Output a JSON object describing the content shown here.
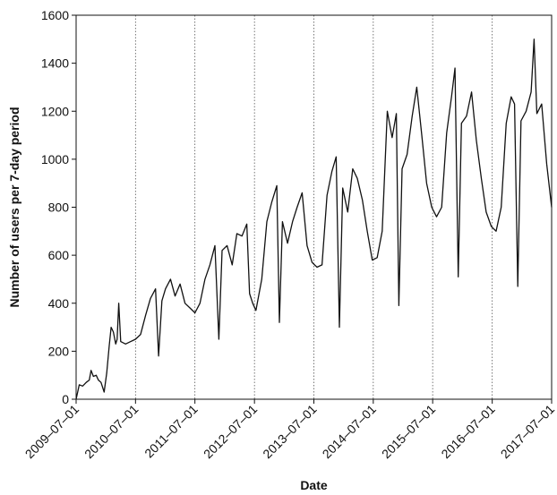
{
  "chart_data": {
    "type": "line",
    "title": "",
    "xlabel": "Date",
    "ylabel": "Number of users per 7-day period",
    "ylim": [
      0,
      1600
    ],
    "xlim": [
      "2009-07-01",
      "2017-07-01"
    ],
    "x_ticks": [
      "2009–07–01",
      "2010–07–01",
      "2011–07–01",
      "2012–07–01",
      "2013–07–01",
      "2014–07–01",
      "2015–07–01",
      "2016–07–01",
      "2017–07–01"
    ],
    "y_ticks": [
      0,
      200,
      400,
      600,
      800,
      1000,
      1200,
      1400,
      1600
    ],
    "grid": "vertical dotted lines at each x tick",
    "series": [
      {
        "color": "#111111",
        "points": [
          [
            "2009-07-01",
            0
          ],
          [
            "2009-07-20",
            60
          ],
          [
            "2009-08-10",
            55
          ],
          [
            "2009-09-01",
            70
          ],
          [
            "2009-09-20",
            80
          ],
          [
            "2009-10-01",
            120
          ],
          [
            "2009-10-15",
            95
          ],
          [
            "2009-11-01",
            100
          ],
          [
            "2009-11-15",
            80
          ],
          [
            "2009-12-01",
            70
          ],
          [
            "2009-12-20",
            30
          ],
          [
            "2010-01-05",
            110
          ],
          [
            "2010-01-20",
            220
          ],
          [
            "2010-02-01",
            300
          ],
          [
            "2010-02-15",
            280
          ],
          [
            "2010-03-01",
            230
          ],
          [
            "2010-03-10",
            250
          ],
          [
            "2010-03-20",
            400
          ],
          [
            "2010-04-01",
            240
          ],
          [
            "2010-05-01",
            230
          ],
          [
            "2010-06-01",
            240
          ],
          [
            "2010-07-01",
            250
          ],
          [
            "2010-08-01",
            270
          ],
          [
            "2010-09-01",
            350
          ],
          [
            "2010-10-01",
            420
          ],
          [
            "2010-11-01",
            460
          ],
          [
            "2010-11-20",
            180
          ],
          [
            "2010-12-10",
            410
          ],
          [
            "2011-01-01",
            460
          ],
          [
            "2011-02-01",
            500
          ],
          [
            "2011-03-01",
            430
          ],
          [
            "2011-04-01",
            480
          ],
          [
            "2011-05-01",
            400
          ],
          [
            "2011-06-01",
            380
          ],
          [
            "2011-07-01",
            360
          ],
          [
            "2011-08-01",
            400
          ],
          [
            "2011-09-01",
            500
          ],
          [
            "2011-10-01",
            560
          ],
          [
            "2011-11-01",
            640
          ],
          [
            "2011-11-25",
            250
          ],
          [
            "2011-12-15",
            620
          ],
          [
            "2012-01-15",
            640
          ],
          [
            "2012-02-15",
            560
          ],
          [
            "2012-03-15",
            690
          ],
          [
            "2012-04-15",
            680
          ],
          [
            "2012-05-15",
            730
          ],
          [
            "2012-06-01",
            440
          ],
          [
            "2012-06-20",
            400
          ],
          [
            "2012-07-10",
            370
          ],
          [
            "2012-08-15",
            500
          ],
          [
            "2012-09-15",
            740
          ],
          [
            "2012-10-15",
            820
          ],
          [
            "2012-11-15",
            890
          ],
          [
            "2012-12-01",
            320
          ],
          [
            "2012-12-20",
            740
          ],
          [
            "2013-01-20",
            650
          ],
          [
            "2013-02-20",
            740
          ],
          [
            "2013-03-20",
            800
          ],
          [
            "2013-04-20",
            860
          ],
          [
            "2013-05-20",
            640
          ],
          [
            "2013-06-20",
            570
          ],
          [
            "2013-07-20",
            550
          ],
          [
            "2013-08-20",
            560
          ],
          [
            "2013-09-20",
            850
          ],
          [
            "2013-10-20",
            950
          ],
          [
            "2013-11-15",
            1010
          ],
          [
            "2013-12-05",
            300
          ],
          [
            "2013-12-25",
            880
          ],
          [
            "2014-01-25",
            780
          ],
          [
            "2014-02-25",
            960
          ],
          [
            "2014-03-25",
            920
          ],
          [
            "2014-04-25",
            830
          ],
          [
            "2014-05-25",
            700
          ],
          [
            "2014-06-25",
            580
          ],
          [
            "2014-07-25",
            590
          ],
          [
            "2014-08-25",
            700
          ],
          [
            "2014-09-25",
            1200
          ],
          [
            "2014-10-25",
            1090
          ],
          [
            "2014-11-20",
            1190
          ],
          [
            "2014-12-05",
            390
          ],
          [
            "2014-12-25",
            960
          ],
          [
            "2015-01-25",
            1020
          ],
          [
            "2015-02-25",
            1180
          ],
          [
            "2015-03-25",
            1300
          ],
          [
            "2015-04-25",
            1100
          ],
          [
            "2015-05-25",
            900
          ],
          [
            "2015-06-25",
            800
          ],
          [
            "2015-07-25",
            760
          ],
          [
            "2015-08-25",
            800
          ],
          [
            "2015-09-25",
            1110
          ],
          [
            "2015-10-25",
            1260
          ],
          [
            "2015-11-15",
            1380
          ],
          [
            "2015-12-05",
            510
          ],
          [
            "2015-12-25",
            1150
          ],
          [
            "2016-01-25",
            1180
          ],
          [
            "2016-02-25",
            1280
          ],
          [
            "2016-03-25",
            1080
          ],
          [
            "2016-04-25",
            920
          ],
          [
            "2016-05-25",
            780
          ],
          [
            "2016-06-25",
            720
          ],
          [
            "2016-07-25",
            700
          ],
          [
            "2016-08-25",
            800
          ],
          [
            "2016-09-25",
            1150
          ],
          [
            "2016-10-25",
            1260
          ],
          [
            "2016-11-15",
            1230
          ],
          [
            "2016-12-05",
            470
          ],
          [
            "2016-12-25",
            1160
          ],
          [
            "2017-01-25",
            1200
          ],
          [
            "2017-02-25",
            1280
          ],
          [
            "2017-03-15",
            1500
          ],
          [
            "2017-04-01",
            1190
          ],
          [
            "2017-05-01",
            1230
          ],
          [
            "2017-06-01",
            980
          ],
          [
            "2017-07-01",
            800
          ]
        ]
      }
    ]
  }
}
